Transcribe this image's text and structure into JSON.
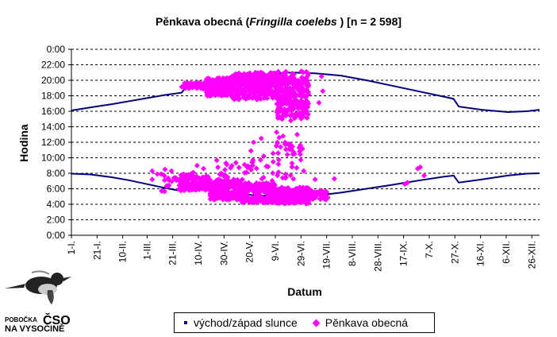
{
  "chart_data": {
    "type": "scatter",
    "title_prefix": "Pěnkava obecná (",
    "title_latin": "Fringilla coelebs",
    "title_suffix": " ) [n = 2 598]",
    "xlabel": "Datum",
    "ylabel": "Hodina",
    "ylim": [
      0,
      24
    ],
    "y_ticks": [
      "0:00",
      "2:00",
      "4:00",
      "6:00",
      "8:00",
      "10:00",
      "12:00",
      "14:00",
      "16:00",
      "18:00",
      "20:00",
      "22:00",
      "0:00"
    ],
    "x_ticks": [
      {
        "label": "1-I.",
        "day": 0
      },
      {
        "label": "21-I.",
        "day": 20
      },
      {
        "label": "10-II.",
        "day": 40
      },
      {
        "label": "1-III.",
        "day": 59
      },
      {
        "label": "21-III.",
        "day": 79
      },
      {
        "label": "10-IV.",
        "day": 99
      },
      {
        "label": "30-IV.",
        "day": 119
      },
      {
        "label": "20-V.",
        "day": 139
      },
      {
        "label": "9-VI.",
        "day": 159
      },
      {
        "label": "29-VI.",
        "day": 179
      },
      {
        "label": "19-VII.",
        "day": 199
      },
      {
        "label": "8-VIII.",
        "day": 219
      },
      {
        "label": "28-VIII.",
        "day": 239
      },
      {
        "label": "17-IX.",
        "day": 259
      },
      {
        "label": "7-X.",
        "day": 279
      },
      {
        "label": "27-X.",
        "day": 299
      },
      {
        "label": "16-XI.",
        "day": 319
      },
      {
        "label": "6-XII.",
        "day": 339
      },
      {
        "label": "26-XII.",
        "day": 359
      }
    ],
    "xlim_days": [
      0,
      365
    ],
    "grid": "horizontal dashed",
    "legend_position": "bottom",
    "series": [
      {
        "name": "východ/západ slunce",
        "color": "#000080",
        "style": "line",
        "sunset_points": [
          [
            0,
            16.1
          ],
          [
            15,
            16.5
          ],
          [
            31,
            16.9
          ],
          [
            45,
            17.3
          ],
          [
            59,
            17.7
          ],
          [
            73,
            18.1
          ],
          [
            86,
            18.4
          ],
          [
            90,
            19.3
          ],
          [
            105,
            19.7
          ],
          [
            120,
            20.0
          ],
          [
            140,
            20.5
          ],
          [
            160,
            20.9
          ],
          [
            172,
            21.0
          ],
          [
            190,
            20.9
          ],
          [
            210,
            20.6
          ],
          [
            230,
            20.0
          ],
          [
            250,
            19.3
          ],
          [
            270,
            18.6
          ],
          [
            290,
            17.9
          ],
          [
            298,
            17.6
          ],
          [
            302,
            16.6
          ],
          [
            320,
            16.2
          ],
          [
            340,
            15.9
          ],
          [
            355,
            16.0
          ],
          [
            365,
            16.2
          ]
        ],
        "sunrise_points": [
          [
            0,
            7.95
          ],
          [
            15,
            7.85
          ],
          [
            31,
            7.5
          ],
          [
            45,
            7.1
          ],
          [
            59,
            6.6
          ],
          [
            73,
            6.1
          ],
          [
            86,
            5.7
          ],
          [
            90,
            6.6
          ],
          [
            105,
            6.1
          ],
          [
            120,
            5.6
          ],
          [
            140,
            5.2
          ],
          [
            160,
            5.0
          ],
          [
            172,
            4.95
          ],
          [
            190,
            5.1
          ],
          [
            210,
            5.5
          ],
          [
            230,
            6.0
          ],
          [
            250,
            6.5
          ],
          [
            270,
            7.05
          ],
          [
            290,
            7.55
          ],
          [
            298,
            7.7
          ],
          [
            302,
            6.8
          ],
          [
            320,
            7.2
          ],
          [
            340,
            7.7
          ],
          [
            355,
            7.95
          ],
          [
            365,
            8.0
          ]
        ]
      },
      {
        "name": "Pěnkava obecná",
        "color": "#ff00ff",
        "style": "markers",
        "clusters": [
          {
            "x": [
              84,
              108
            ],
            "y": [
              5.8,
              7.6
            ],
            "n": 150
          },
          {
            "x": [
              108,
              130
            ],
            "y": [
              4.6,
              7.2
            ],
            "n": 180
          },
          {
            "x": [
              130,
              160
            ],
            "y": [
              4.2,
              6.8
            ],
            "n": 220
          },
          {
            "x": [
              160,
              185
            ],
            "y": [
              4.1,
              6.2
            ],
            "n": 180
          },
          {
            "x": [
              185,
              200
            ],
            "y": [
              4.6,
              5.8
            ],
            "n": 40
          },
          {
            "x": [
              86,
              104
            ],
            "y": [
              18.9,
              19.7
            ],
            "n": 40
          },
          {
            "x": [
              105,
              125
            ],
            "y": [
              18.0,
              20.3
            ],
            "n": 200
          },
          {
            "x": [
              125,
              160
            ],
            "y": [
              17.5,
              21.0
            ],
            "n": 320
          },
          {
            "x": [
              160,
              185
            ],
            "y": [
              15.0,
              21.2
            ],
            "n": 260
          },
          {
            "x": [
              156,
              182
            ],
            "y": [
              7.0,
              12.0
            ],
            "n": 40
          },
          {
            "x": [
              112,
              154
            ],
            "y": [
              7.0,
              10.0
            ],
            "n": 35
          },
          {
            "x": [
              70,
              95
            ],
            "y": [
              5.6,
              8.0
            ],
            "n": 35
          }
        ],
        "points": [
          [
            63,
            8.3
          ],
          [
            63,
            7.2
          ],
          [
            67,
            7.9
          ],
          [
            70,
            7.9
          ],
          [
            73,
            8.5
          ],
          [
            76,
            7.1
          ],
          [
            78,
            8.3
          ],
          [
            80,
            7.4
          ],
          [
            95,
            8.1
          ],
          [
            98,
            9.0
          ],
          [
            103,
            8.6
          ],
          [
            105,
            7.6
          ],
          [
            140,
            10.9
          ],
          [
            142,
            12.0
          ],
          [
            148,
            12.5
          ],
          [
            150,
            10.2
          ],
          [
            152,
            8.9
          ],
          [
            160,
            13.3
          ],
          [
            162,
            12.6
          ],
          [
            163,
            11.4
          ],
          [
            165,
            12.8
          ],
          [
            167,
            11.7
          ],
          [
            170,
            11.1
          ],
          [
            172,
            9.3
          ],
          [
            174,
            10.5
          ],
          [
            176,
            13.0
          ],
          [
            163,
            17.0
          ],
          [
            167,
            15.6
          ],
          [
            171,
            14.8
          ],
          [
            174,
            15.1
          ],
          [
            193,
            17.1
          ],
          [
            195,
            20.5
          ],
          [
            196,
            18.6
          ],
          [
            190,
            7.2
          ],
          [
            205,
            7.3
          ],
          [
            260,
            6.6
          ],
          [
            262,
            6.8
          ],
          [
            270,
            8.6
          ],
          [
            272,
            8.8
          ],
          [
            275,
            7.7
          ]
        ]
      }
    ]
  },
  "legend": {
    "item1": "východ/západ slunce",
    "item2": "Pěnkava obecná"
  },
  "logo": {
    "line1": "POBOČKA",
    "line2": "ČSO",
    "line3": "NA VYSOČINĚ"
  }
}
